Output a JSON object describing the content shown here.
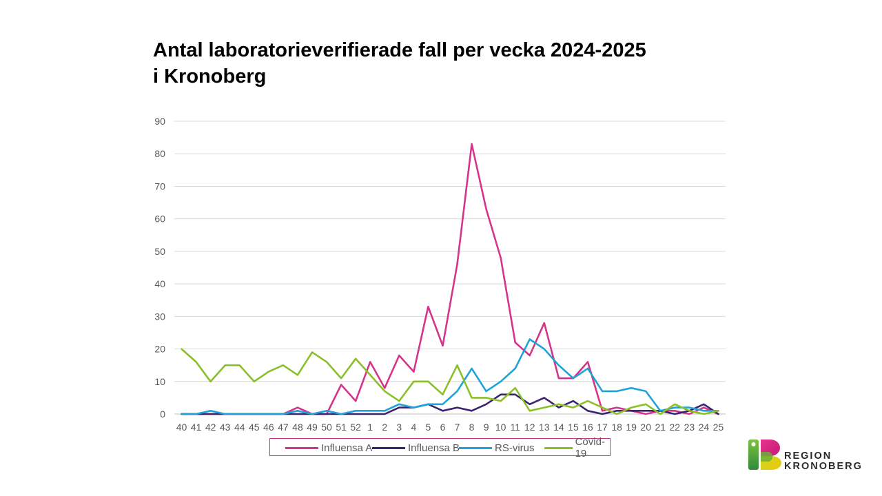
{
  "title_line1": "Antal laboratorieverifierade fall per vecka 2024-2025",
  "title_line2": "i Kronoberg",
  "logo": {
    "line1": "REGION",
    "line2": "KRONOBERG"
  },
  "chart_data": {
    "type": "line",
    "title": "Antal laboratorieverifierade fall per vecka 2024-2025 i Kronoberg",
    "xlabel": "",
    "ylabel": "",
    "ylim": [
      0,
      90
    ],
    "yticks": [
      0,
      10,
      20,
      30,
      40,
      50,
      60,
      70,
      80,
      90
    ],
    "grid": true,
    "legend_position": "bottom",
    "categories": [
      "40",
      "41",
      "42",
      "43",
      "44",
      "45",
      "46",
      "47",
      "48",
      "49",
      "50",
      "51",
      "52",
      "1",
      "2",
      "3",
      "4",
      "5",
      "6",
      "7",
      "8",
      "9",
      "10",
      "11",
      "12",
      "13",
      "14",
      "15",
      "16",
      "17",
      "18",
      "19",
      "20",
      "21",
      "22",
      "23",
      "24",
      "25"
    ],
    "series": [
      {
        "name": "Influensa A",
        "color": "#d6338a",
        "values": [
          0,
          0,
          0,
          0,
          0,
          0,
          0,
          0,
          2,
          0,
          0,
          9,
          4,
          16,
          8,
          18,
          13,
          33,
          21,
          46,
          83,
          63,
          48,
          22,
          18,
          28,
          11,
          11,
          16,
          1,
          2,
          1,
          0,
          1,
          1,
          0,
          2,
          0
        ]
      },
      {
        "name": "Influensa B",
        "color": "#3b2273",
        "values": [
          0,
          0,
          0,
          0,
          0,
          0,
          0,
          0,
          0,
          0,
          0,
          0,
          0,
          0,
          0,
          2,
          2,
          3,
          1,
          2,
          1,
          3,
          6,
          6,
          3,
          5,
          2,
          4,
          1,
          0,
          1,
          1,
          1,
          1,
          0,
          1,
          3,
          0
        ]
      },
      {
        "name": "RS-virus",
        "color": "#1ea3d8",
        "values": [
          0,
          0,
          1,
          0,
          0,
          0,
          0,
          0,
          1,
          0,
          1,
          0,
          1,
          1,
          1,
          3,
          2,
          3,
          3,
          7,
          14,
          7,
          10,
          14,
          23,
          20,
          15,
          11,
          14,
          7,
          7,
          8,
          7,
          1,
          2,
          2,
          1,
          1
        ]
      },
      {
        "name": "Covid-19",
        "color": "#8bbf29",
        "values": [
          20,
          16,
          10,
          15,
          15,
          10,
          13,
          15,
          12,
          19,
          16,
          11,
          17,
          12,
          7,
          4,
          10,
          10,
          6,
          15,
          5,
          5,
          4,
          8,
          1,
          2,
          3,
          2,
          4,
          2,
          0,
          2,
          3,
          0,
          3,
          1,
          0,
          1
        ]
      }
    ]
  }
}
